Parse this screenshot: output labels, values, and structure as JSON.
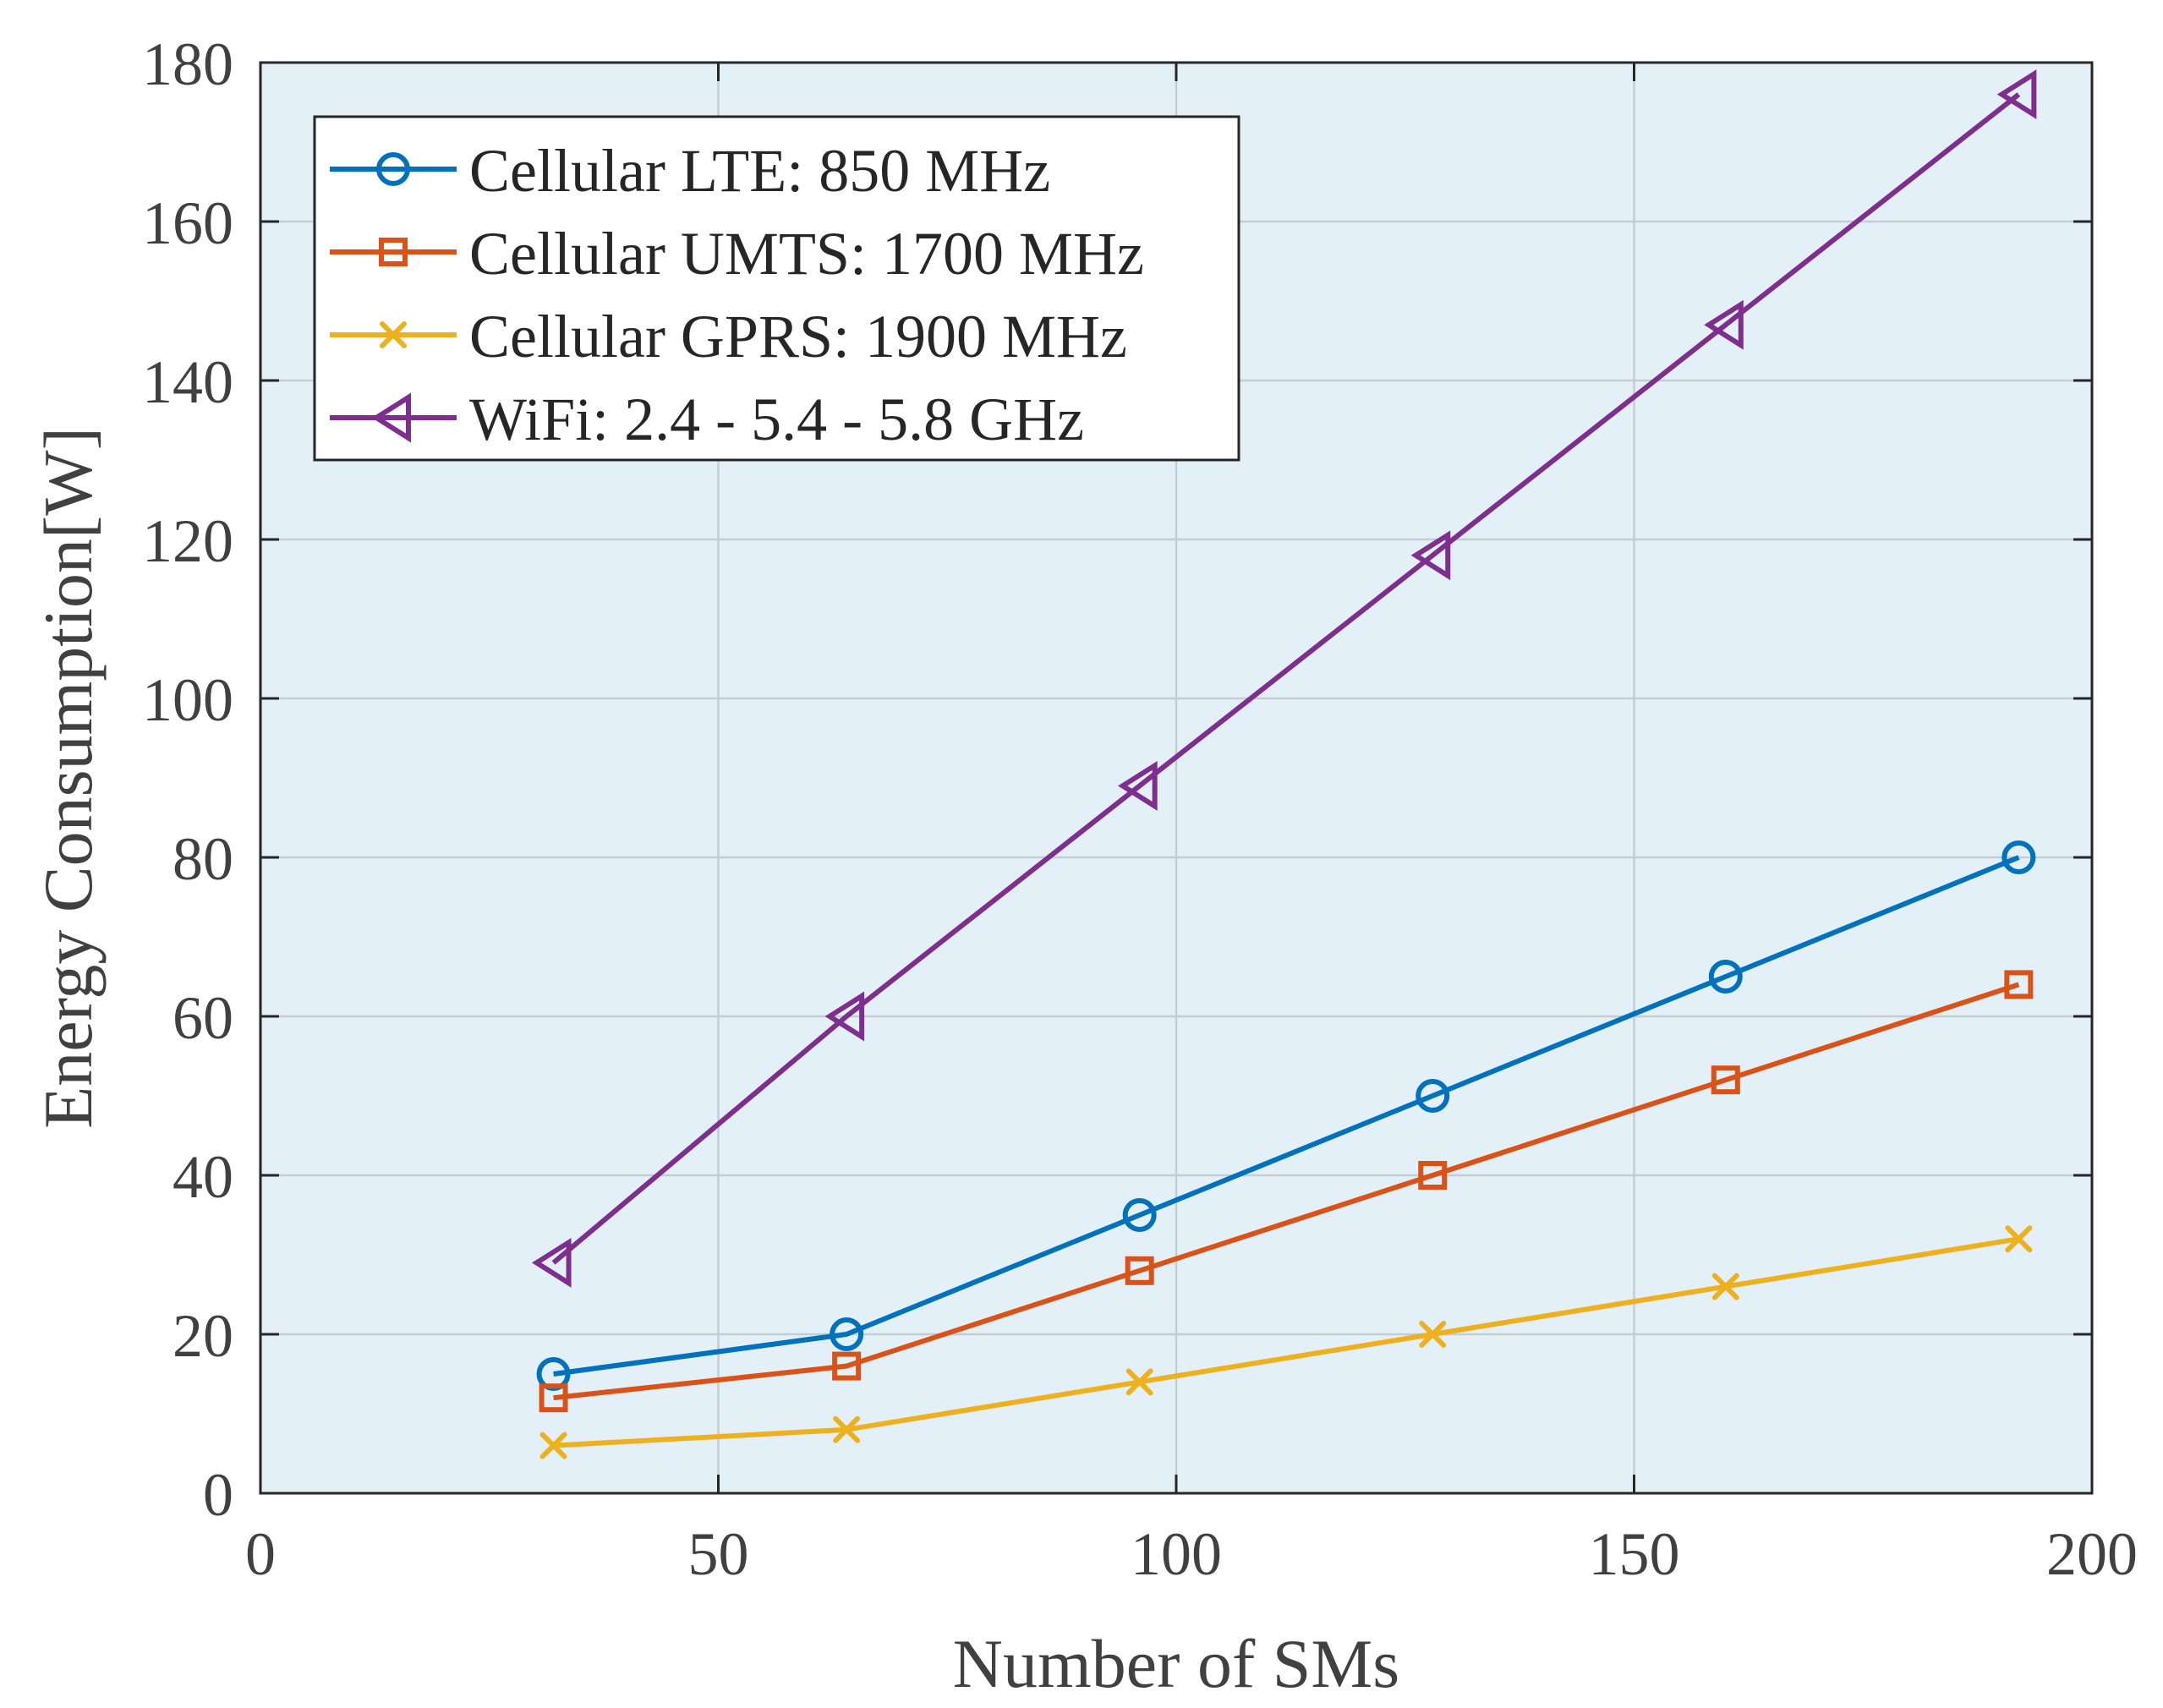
{
  "chart_data": {
    "type": "line",
    "title": "",
    "xlabel": "Number of SMs",
    "ylabel": "Energy Consumption[W]",
    "xlim": [
      0,
      200
    ],
    "ylim": [
      0,
      180
    ],
    "xticks": [
      0,
      50,
      100,
      150,
      200
    ],
    "yticks": [
      0,
      20,
      40,
      60,
      80,
      100,
      120,
      140,
      160,
      180
    ],
    "grid": true,
    "legend_position": "top-left",
    "x": [
      32,
      64,
      96,
      128,
      160,
      192
    ],
    "series": [
      {
        "name": "Cellular LTE: 850 MHz",
        "color": "#0072BD",
        "marker": "circle",
        "values": [
          15,
          20,
          35,
          50,
          65,
          80
        ]
      },
      {
        "name": "Cellular UMTS: 1700 MHz",
        "color": "#D95319",
        "marker": "square",
        "values": [
          12,
          16,
          28,
          40,
          52,
          64
        ]
      },
      {
        "name": "Cellular GPRS: 1900 MHz",
        "color": "#EDB120",
        "marker": "x",
        "values": [
          6,
          8,
          14,
          20,
          26,
          32
        ]
      },
      {
        "name": "WiFi: 2.4 - 5.4 - 5.8 GHz",
        "color": "#7E2F8E",
        "marker": "triangle-left",
        "values": [
          29,
          60,
          89,
          118,
          147,
          176
        ]
      }
    ]
  }
}
